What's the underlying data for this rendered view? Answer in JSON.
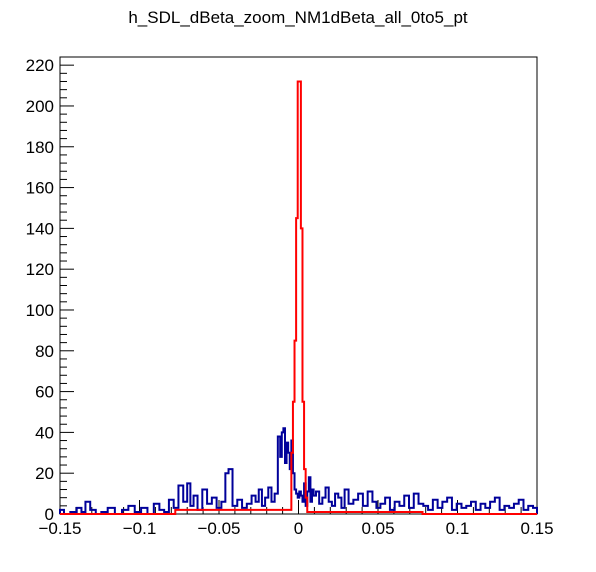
{
  "chart_data": {
    "type": "histogram",
    "title": "h_SDL_dBeta_zoom_NM1dBeta_all_0to5_pt",
    "xlabel": "",
    "ylabel": "",
    "xlim": [
      -0.15,
      0.15
    ],
    "ylim": [
      0,
      224
    ],
    "x_ticks": [
      -0.15,
      -0.1,
      -0.05,
      0,
      0.05,
      0.1,
      0.15
    ],
    "x_tick_labels": [
      "−0.15",
      "−0.1",
      "−0.05",
      "0",
      "0.05",
      "0.1",
      "0.15"
    ],
    "y_ticks": [
      0,
      20,
      40,
      60,
      80,
      100,
      120,
      140,
      160,
      180,
      200,
      220
    ],
    "y_tick_labels": [
      "0",
      "20",
      "40",
      "60",
      "80",
      "100",
      "120",
      "140",
      "160",
      "180",
      "200",
      "220"
    ],
    "grid": false,
    "legend": "none",
    "series": [
      {
        "color": "#00009a",
        "x": [
          -0.149,
          -0.146,
          -0.141,
          -0.138,
          -0.135,
          -0.133,
          -0.129,
          -0.126,
          -0.122,
          -0.118,
          -0.113,
          -0.109,
          -0.105,
          -0.101,
          -0.097,
          -0.093,
          -0.089,
          -0.086,
          -0.083,
          -0.08,
          -0.077,
          -0.074,
          -0.071,
          -0.069,
          -0.067,
          -0.065,
          -0.062,
          -0.059,
          -0.056,
          -0.053,
          -0.05,
          -0.047,
          -0.045,
          -0.043,
          -0.04,
          -0.037,
          -0.034,
          -0.031,
          -0.028,
          -0.026,
          -0.024,
          -0.022,
          -0.02,
          -0.018,
          -0.016,
          -0.014,
          -0.012,
          -0.011,
          -0.01,
          -0.009,
          -0.008,
          -0.007,
          -0.006,
          -0.005,
          -0.004,
          -0.003,
          -0.002,
          -0.001,
          0.0,
          0.001,
          0.002,
          0.003,
          0.004,
          0.005,
          0.006,
          0.007,
          0.008,
          0.009,
          0.01,
          0.012,
          0.014,
          0.016,
          0.018,
          0.02,
          0.022,
          0.024,
          0.026,
          0.028,
          0.03,
          0.033,
          0.036,
          0.039,
          0.042,
          0.045,
          0.048,
          0.05,
          0.053,
          0.056,
          0.059,
          0.062,
          0.065,
          0.068,
          0.071,
          0.074,
          0.077,
          0.08,
          0.083,
          0.086,
          0.089,
          0.092,
          0.095,
          0.098,
          0.101,
          0.104,
          0.107,
          0.11,
          0.113,
          0.116,
          0.119,
          0.122,
          0.125,
          0.128,
          0.131,
          0.134,
          0.137,
          0.14,
          0.143,
          0.146,
          0.149
        ],
        "values": [
          2,
          0,
          1,
          3,
          1,
          6,
          2,
          0,
          1,
          3,
          0,
          2,
          4,
          1,
          3,
          0,
          5,
          2,
          1,
          7,
          3,
          14,
          6,
          15,
          4,
          9,
          2,
          12,
          5,
          8,
          3,
          6,
          20,
          22,
          4,
          7,
          3,
          5,
          9,
          6,
          12,
          4,
          8,
          13,
          6,
          10,
          38,
          28,
          40,
          42,
          25,
          35,
          30,
          22,
          36,
          20,
          12,
          10,
          8,
          11,
          9,
          6,
          15,
          4,
          11,
          18,
          6,
          12,
          9,
          11,
          5,
          8,
          13,
          6,
          4,
          10,
          8,
          3,
          12,
          5,
          7,
          10,
          4,
          11,
          6,
          3,
          5,
          8,
          2,
          6,
          4,
          9,
          3,
          10,
          5,
          4,
          2,
          7,
          3,
          6,
          8,
          2,
          5,
          3,
          4,
          6,
          2,
          5,
          3,
          6,
          8,
          2,
          4,
          3,
          5,
          7,
          2,
          4,
          3
        ]
      },
      {
        "color": "#ff0000",
        "x": [
          -0.15,
          -0.005,
          -0.004,
          -0.003,
          -0.002,
          -0.001,
          0.0,
          0.001,
          0.002,
          0.003,
          0.004,
          0.005,
          0.006,
          0.15
        ],
        "values": [
          0,
          2,
          30,
          55,
          85,
          145,
          212,
          212,
          140,
          55,
          22,
          8,
          1,
          0
        ]
      }
    ]
  }
}
